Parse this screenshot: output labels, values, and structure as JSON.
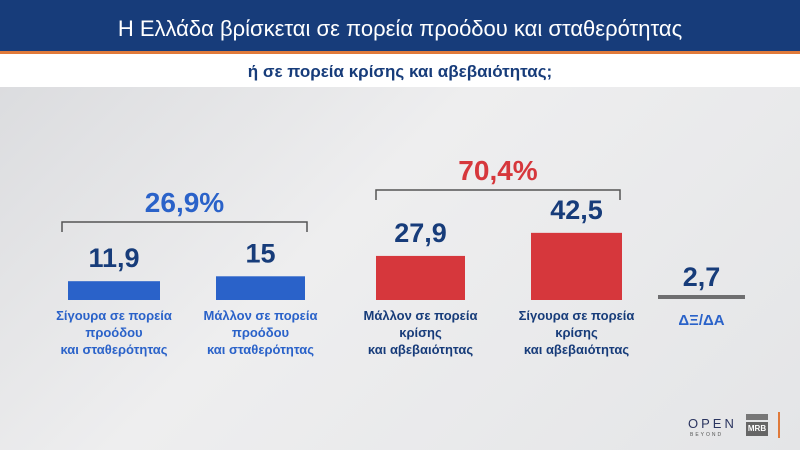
{
  "title": "Η Ελλάδα βρίσκεται σε πορεία προόδου και σταθερότητας",
  "subtitle": "ή σε πορεία κρίσης και αβεβαιότητας;",
  "chart_data": {
    "type": "bar",
    "categories": [
      "Σίγουρα σε πορεία προόδου και σταθερότητας",
      "Μάλλον σε πορεία προόδου και σταθερότητας",
      "Μάλλον σε πορεία κρίσης και αβεβαιότητας",
      "Σίγουρα σε πορεία κρίσης και αβεβαιότητας",
      "ΔΞ/ΔΑ"
    ],
    "category_lines": [
      [
        "Σίγουρα σε πορεία",
        "προόδου",
        "και σταθερότητας"
      ],
      [
        "Μάλλον σε πορεία",
        "προόδου",
        "και σταθερότητας"
      ],
      [
        "Μάλλον σε πορεία",
        "κρίσης",
        "και αβεβαιότητας"
      ],
      [
        "Σίγουρα σε πορεία",
        "κρίσης",
        "και αβεβαιότητας"
      ],
      [
        "ΔΞ/ΔΑ"
      ]
    ],
    "values": [
      11.9,
      15,
      27.9,
      42.5,
      2.7
    ],
    "data_labels": [
      "11,9",
      "15",
      "27,9",
      "42,5",
      "2,7"
    ],
    "colors": [
      "#2a62c9",
      "#2a62c9",
      "#d6373c",
      "#d6373c",
      "#6e6e70"
    ],
    "groups": [
      {
        "label": "26,9%",
        "value": 26.9,
        "members": [
          0,
          1
        ],
        "color": "#2a62c9"
      },
      {
        "label": "70,4%",
        "value": 70.4,
        "members": [
          2,
          3
        ],
        "color": "#d6373c"
      }
    ]
  },
  "logos": {
    "open": "OPEN",
    "open_tagline": "BEYOND",
    "mrb": "MRB"
  }
}
